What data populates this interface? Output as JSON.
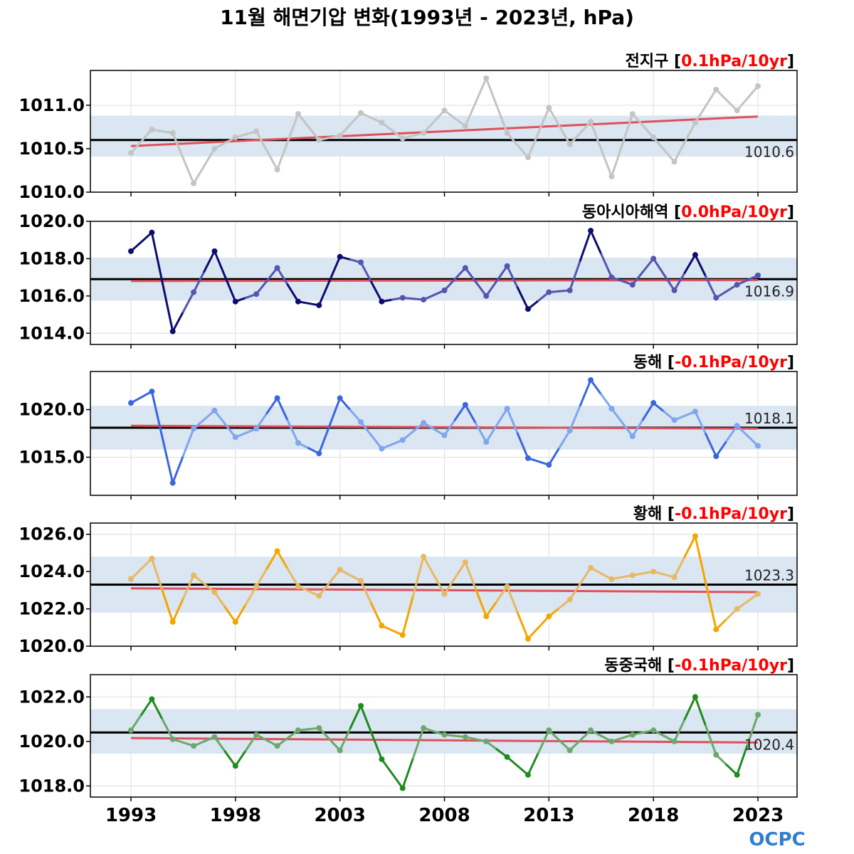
{
  "title": "11월 해면기압 변화(1993년 - 2023년, hPa)",
  "logo_text": "OCPC",
  "colors": {
    "band": "#dae6f1",
    "mean_line": "#000000",
    "trend_line": "#e0505a",
    "trend_text": "#ff0000",
    "grid": "#dddddd"
  },
  "x_ticks": [
    "1993",
    "1998",
    "2003",
    "2008",
    "2013",
    "2018",
    "2023"
  ],
  "chart_data": [
    {
      "type": "line",
      "region": "전지구",
      "trend_text": "0.1hPa/10yr",
      "color_light": "#c4c4c4",
      "color_dark": "#c4c4c4",
      "mean": 1010.6,
      "mean_label": "1010.6",
      "band": [
        1010.41,
        1010.88
      ],
      "trend": [
        1010.53,
        1010.87
      ],
      "ylim": [
        1010.0,
        1011.4
      ],
      "yticks": [
        1010.0,
        1010.5,
        1011.0
      ],
      "ytick_labels": [
        "1010.0",
        "1010.5",
        "1011.0"
      ],
      "x": [
        1993,
        1994,
        1995,
        1996,
        1997,
        1998,
        1999,
        2000,
        2001,
        2002,
        2003,
        2004,
        2005,
        2006,
        2007,
        2008,
        2009,
        2010,
        2011,
        2012,
        2013,
        2014,
        2015,
        2016,
        2017,
        2018,
        2019,
        2020,
        2021,
        2022,
        2023
      ],
      "values": [
        1010.45,
        1010.72,
        1010.68,
        1010.1,
        1010.5,
        1010.63,
        1010.7,
        1010.26,
        1010.9,
        1010.6,
        1010.65,
        1010.91,
        1010.8,
        1010.62,
        1010.68,
        1010.94,
        1010.76,
        1011.31,
        1010.68,
        1010.4,
        1010.97,
        1010.55,
        1010.81,
        1010.18,
        1010.9,
        1010.63,
        1010.35,
        1010.8,
        1011.18,
        1010.94,
        1011.22
      ]
    },
    {
      "type": "line",
      "region": "동아시아해역",
      "trend_text": "0.0hPa/10yr",
      "color_light": "#5555b0",
      "color_dark": "#0d0d70",
      "mean": 1016.9,
      "mean_label": "1016.9",
      "band": [
        1015.75,
        1018.05
      ],
      "trend": [
        1016.8,
        1016.85
      ],
      "ylim": [
        1013.4,
        1020.0
      ],
      "yticks": [
        1014.0,
        1016.0,
        1018.0,
        1020.0
      ],
      "ytick_labels": [
        "1014.0",
        "1016.0",
        "1018.0",
        "1020.0"
      ],
      "x": [
        1993,
        1994,
        1995,
        1996,
        1997,
        1998,
        1999,
        2000,
        2001,
        2002,
        2003,
        2004,
        2005,
        2006,
        2007,
        2008,
        2009,
        2010,
        2011,
        2012,
        2013,
        2014,
        2015,
        2016,
        2017,
        2018,
        2019,
        2020,
        2021,
        2022,
        2023
      ],
      "values": [
        1018.4,
        1019.4,
        1014.1,
        1016.2,
        1018.4,
        1015.7,
        1016.1,
        1017.5,
        1015.7,
        1015.5,
        1018.1,
        1017.8,
        1015.7,
        1015.9,
        1015.8,
        1016.3,
        1017.5,
        1016.0,
        1017.6,
        1015.3,
        1016.2,
        1016.3,
        1019.5,
        1017.0,
        1016.6,
        1018.0,
        1016.3,
        1018.2,
        1015.9,
        1016.6,
        1017.1
      ]
    },
    {
      "type": "line",
      "region": "동해",
      "trend_text": "-0.1hPa/10yr",
      "color_light": "#7fa6ee",
      "color_dark": "#3a66e0",
      "mean": 1018.1,
      "mean_label": "1018.1",
      "band": [
        1015.8,
        1020.4
      ],
      "trend": [
        1018.3,
        1018.0
      ],
      "ylim": [
        1011.0,
        1024.0
      ],
      "yticks": [
        1015.0,
        1020.0
      ],
      "ytick_labels": [
        "1015.0",
        "1020.0"
      ],
      "x": [
        1993,
        1994,
        1995,
        1996,
        1997,
        1998,
        1999,
        2000,
        2001,
        2002,
        2003,
        2004,
        2005,
        2006,
        2007,
        2008,
        2009,
        2010,
        2011,
        2012,
        2013,
        2014,
        2015,
        2016,
        2017,
        2018,
        2019,
        2020,
        2021,
        2022,
        2023
      ],
      "values": [
        1020.7,
        1021.9,
        1012.3,
        1018.0,
        1019.9,
        1017.1,
        1018.0,
        1021.2,
        1016.5,
        1015.4,
        1021.2,
        1018.7,
        1015.9,
        1016.8,
        1018.6,
        1017.3,
        1020.5,
        1016.6,
        1020.1,
        1014.9,
        1014.2,
        1017.8,
        1023.1,
        1020.1,
        1017.2,
        1020.7,
        1018.9,
        1019.8,
        1015.1,
        1018.3,
        1016.2
      ]
    },
    {
      "type": "line",
      "region": "황해",
      "trend_text": "-0.1hPa/10yr",
      "color_light": "#e8b865",
      "color_dark": "#f5a500",
      "mean": 1023.3,
      "mean_label": "1023.3",
      "band": [
        1021.8,
        1024.8
      ],
      "trend": [
        1023.1,
        1022.9
      ],
      "ylim": [
        1020.0,
        1026.6
      ],
      "yticks": [
        1020.0,
        1022.0,
        1024.0,
        1026.0
      ],
      "ytick_labels": [
        "1020.0",
        "1022.0",
        "1024.0",
        "1026.0"
      ],
      "x": [
        1993,
        1994,
        1995,
        1996,
        1997,
        1998,
        1999,
        2000,
        2001,
        2002,
        2003,
        2004,
        2005,
        2006,
        2007,
        2008,
        2009,
        2010,
        2011,
        2012,
        2013,
        2014,
        2015,
        2016,
        2017,
        2018,
        2019,
        2020,
        2021,
        2022,
        2023
      ],
      "values": [
        1023.6,
        1024.7,
        1021.3,
        1023.8,
        1022.9,
        1021.3,
        1023.2,
        1025.1,
        1023.2,
        1022.7,
        1024.1,
        1023.5,
        1021.1,
        1020.6,
        1024.8,
        1022.8,
        1024.5,
        1021.6,
        1023.2,
        1020.4,
        1021.6,
        1022.5,
        1024.2,
        1023.6,
        1023.8,
        1024.0,
        1023.7,
        1025.9,
        1020.9,
        1022.0,
        1022.8
      ]
    },
    {
      "type": "line",
      "region": "동중국해",
      "trend_text": "-0.1hPa/10yr",
      "color_light": "#6ba86b",
      "color_dark": "#1f8c1f",
      "mean": 1020.4,
      "mean_label": "1020.4",
      "band": [
        1019.45,
        1021.45
      ],
      "trend": [
        1020.15,
        1019.95
      ],
      "ylim": [
        1017.5,
        1023.0
      ],
      "yticks": [
        1018.0,
        1020.0,
        1022.0
      ],
      "ytick_labels": [
        "1018.0",
        "1020.0",
        "1022.0"
      ],
      "x": [
        1993,
        1994,
        1995,
        1996,
        1997,
        1998,
        1999,
        2000,
        2001,
        2002,
        2003,
        2004,
        2005,
        2006,
        2007,
        2008,
        2009,
        2010,
        2011,
        2012,
        2013,
        2014,
        2015,
        2016,
        2017,
        2018,
        2019,
        2020,
        2021,
        2022,
        2023
      ],
      "values": [
        1020.5,
        1021.9,
        1020.1,
        1019.8,
        1020.2,
        1018.9,
        1020.3,
        1019.8,
        1020.5,
        1020.6,
        1019.6,
        1021.6,
        1019.2,
        1017.9,
        1020.6,
        1020.3,
        1020.2,
        1020.0,
        1019.3,
        1018.5,
        1020.5,
        1019.6,
        1020.5,
        1020.0,
        1020.3,
        1020.5,
        1020.0,
        1022.0,
        1019.4,
        1018.5,
        1021.2
      ]
    }
  ]
}
